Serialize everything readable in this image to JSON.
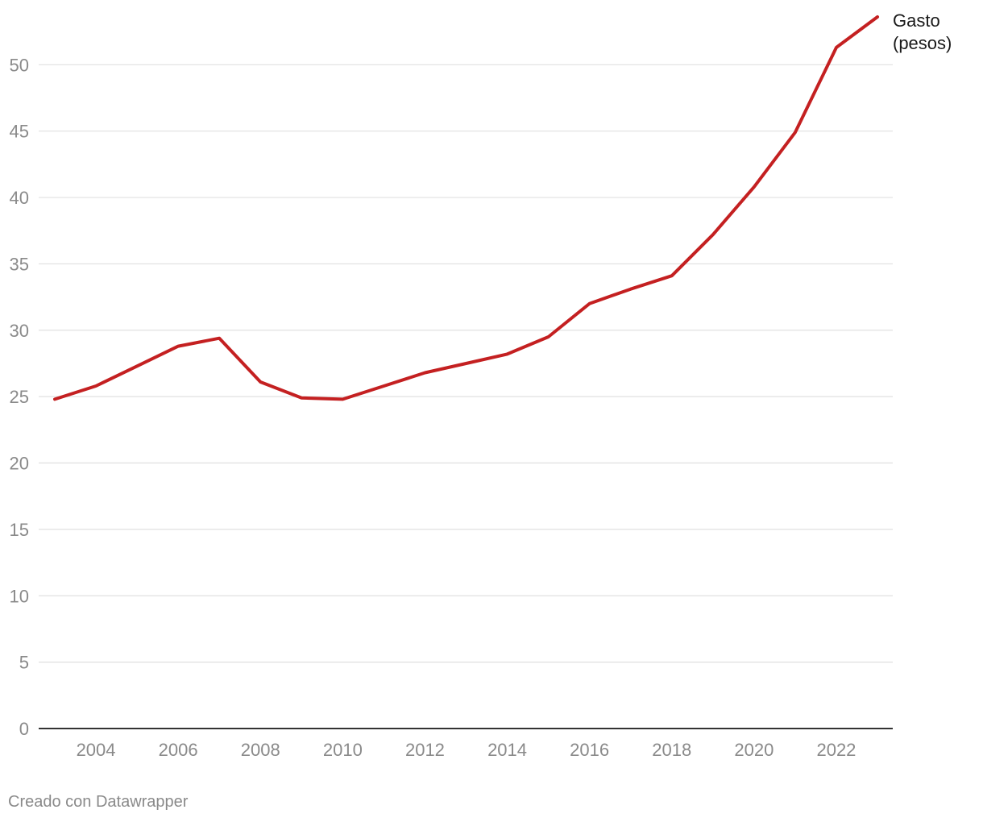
{
  "chart_data": {
    "type": "line",
    "title": "",
    "xlabel": "",
    "ylabel": "",
    "xlim": [
      2003,
      2023
    ],
    "ylim": [
      0,
      53.6
    ],
    "y_ticks": [
      0,
      5,
      10,
      15,
      20,
      25,
      30,
      35,
      40,
      45,
      50
    ],
    "x_ticks": [
      2004,
      2006,
      2008,
      2010,
      2012,
      2014,
      2016,
      2018,
      2020,
      2022
    ],
    "grid": true,
    "legend": "none (series labeled at line end)",
    "series": [
      {
        "name": "Gasto (pesos)",
        "color": "#c42021",
        "x": [
          2003,
          2004,
          2005,
          2006,
          2007,
          2008,
          2009,
          2010,
          2011,
          2012,
          2013,
          2014,
          2015,
          2016,
          2017,
          2018,
          2019,
          2020,
          2021,
          2022,
          2023
        ],
        "y": [
          24.8,
          25.8,
          27.3,
          28.8,
          29.4,
          26.1,
          24.9,
          24.8,
          25.8,
          26.8,
          27.5,
          28.2,
          29.5,
          32.0,
          33.1,
          34.1,
          37.2,
          40.8,
          44.9,
          51.3,
          53.6
        ]
      }
    ],
    "series_label_lines": [
      "Gasto",
      "(pesos)"
    ]
  },
  "footer": {
    "credit": "Creado con Datawrapper"
  }
}
